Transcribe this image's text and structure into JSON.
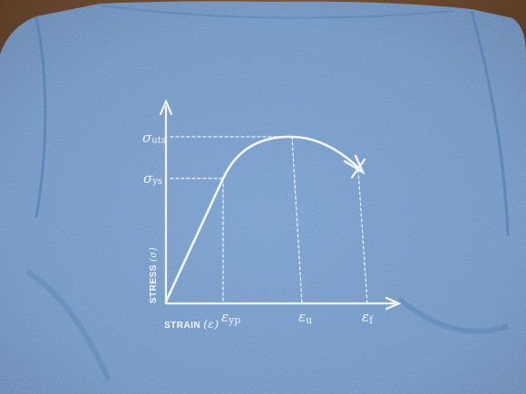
{
  "photo": {
    "subject": "t-shirt-print",
    "colors": {
      "shirt": "#5f8fc4",
      "shirt_dark": "#4e7fb4",
      "ink": "#f4f6f8",
      "wood": "#6b4a32"
    }
  },
  "diagram": {
    "y_axis_label": "STRESS",
    "y_axis_symbol": "(σ)",
    "x_axis_label": "STRAIN",
    "x_axis_symbol": "(ε)",
    "sigma_uts_label": "σ",
    "sigma_uts_sub": "uts",
    "sigma_ys_label": "σ",
    "sigma_ys_sub": "ys",
    "eps_yp_label": "ε",
    "eps_yp_sub": "yp",
    "eps_u_label": "ε",
    "eps_u_sub": "u",
    "eps_f_label": "ε",
    "eps_f_sub": "f"
  }
}
